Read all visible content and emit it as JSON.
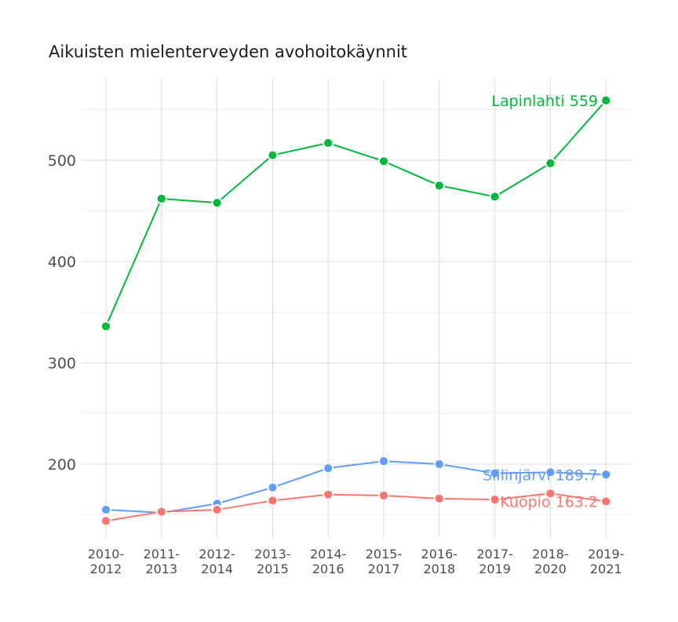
{
  "chart_data": {
    "type": "line",
    "title": "Aikuisten mielenterveyden avohoitokäynnit",
    "xlabel": "",
    "ylabel": "",
    "categories": [
      "2010-2012",
      "2011-2013",
      "2012-2014",
      "2013-2015",
      "2014-2016",
      "2015-2017",
      "2016-2018",
      "2017-2019",
      "2018-2020",
      "2019-2021"
    ],
    "y_ticks": [
      "300",
      "400",
      "500",
      "200"
    ],
    "ylim": [
      135,
      575
    ],
    "grid": true,
    "legend": "none (direct end labels)",
    "series": [
      {
        "name": "Lapinlahti",
        "color": "#00b93a",
        "values": [
          336,
          462,
          458,
          505,
          517,
          499,
          475,
          464,
          497,
          559
        ],
        "end_label": "Lapinlahti 559"
      },
      {
        "name": "Siilinjärvi",
        "color": "#619cff",
        "values": [
          155,
          152,
          161,
          177,
          196,
          203,
          200,
          191,
          192,
          189.7
        ],
        "end_label": "Siilinjärvi 189.7"
      },
      {
        "name": "Kuopio",
        "color": "#f8766d",
        "values": [
          144,
          153,
          155,
          164,
          170,
          169,
          166,
          165,
          171,
          163.2
        ],
        "end_label": "Kuopio 163.2"
      }
    ]
  }
}
